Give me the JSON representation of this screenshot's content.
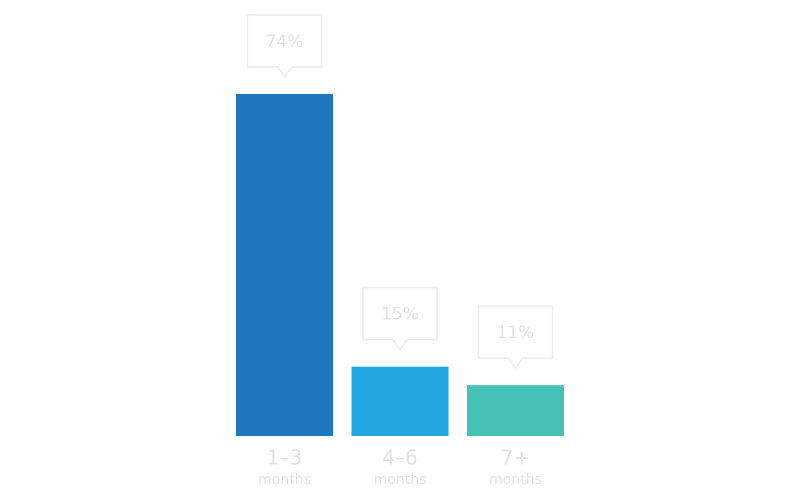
{
  "chart_data": {
    "type": "bar",
    "categories": [
      "1–3",
      "4–6",
      "7+"
    ],
    "category_unit": "months",
    "values": [
      74,
      15,
      11
    ],
    "value_labels": [
      "74%",
      "15%",
      "11%"
    ],
    "colors": [
      "#1f78bf",
      "#21a8e0",
      "#45c1b5"
    ]
  }
}
